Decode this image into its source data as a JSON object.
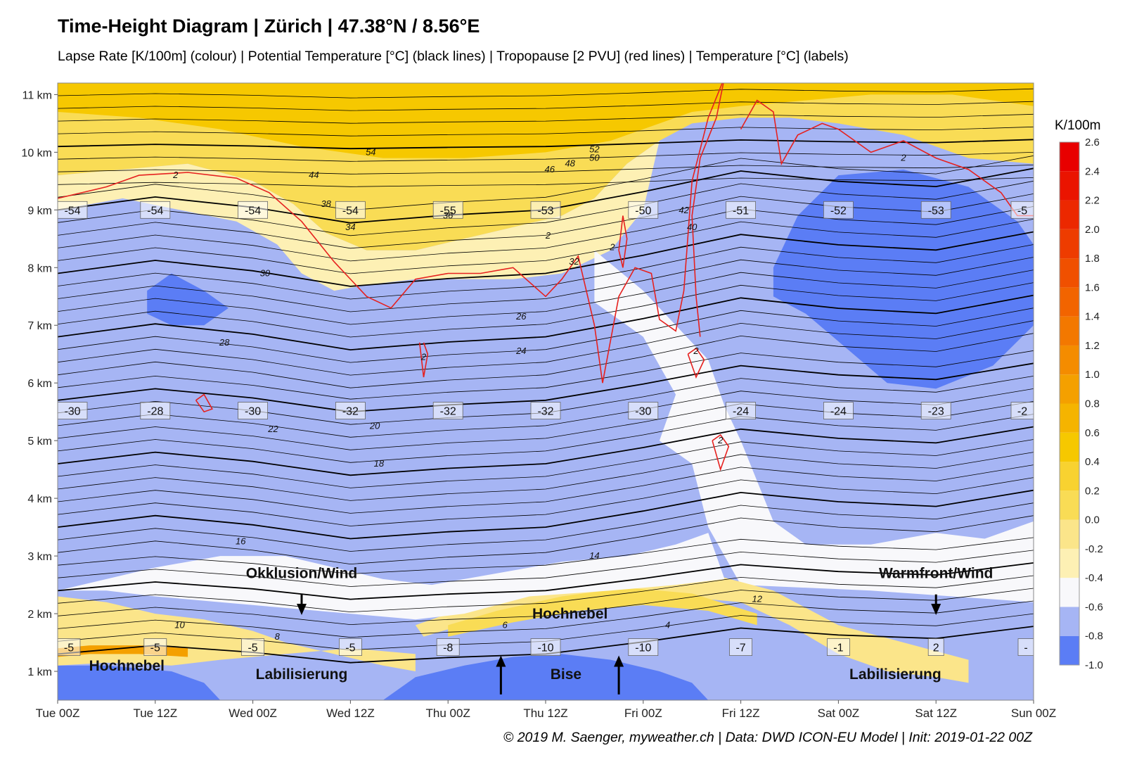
{
  "title": "Time-Height Diagram | Zürich | 47.38°N / 8.56°E",
  "subtitle": "Lapse Rate [K/100m] (colour) | Potential Temperature [°C] (black lines) | Tropopause [2 PVU] (red lines) | Temperature [°C] (labels)",
  "footer": "© 2019 M. Saenger, myweather.ch | Data: DWD ICON-EU Model | Init: 2019-01-22 00Z",
  "chart_data": {
    "type": "heatmap",
    "x_labels": [
      "Tue 00Z",
      "Tue 12Z",
      "Wed 00Z",
      "Wed 12Z",
      "Thu 00Z",
      "Thu 12Z",
      "Fri 00Z",
      "Fri 12Z",
      "Sat 00Z",
      "Sat 12Z",
      "Sun 00Z"
    ],
    "x_hours": [
      0,
      12,
      24,
      36,
      48,
      60,
      72,
      84,
      96,
      108,
      120
    ],
    "y_labels": [
      "1 km",
      "2 km",
      "3 km",
      "4 km",
      "5 km",
      "6 km",
      "7 km",
      "8 km",
      "9 km",
      "10 km",
      "11 km"
    ],
    "y_km": [
      1,
      2,
      3,
      4,
      5,
      6,
      7,
      8,
      9,
      10,
      11
    ],
    "ylim": [
      0.5,
      11.2
    ],
    "xlim": [
      0,
      120
    ],
    "colorbar": {
      "label": "K/100m",
      "levels": [
        -1.0,
        -0.8,
        -0.6,
        -0.4,
        -0.2,
        0.0,
        0.2,
        0.4,
        0.6,
        0.8,
        1.0,
        1.2,
        1.4,
        1.6,
        1.8,
        2.0,
        2.2,
        2.4,
        2.6
      ],
      "tick_labels": [
        "-1.0",
        "-0.8",
        "-0.6",
        "-0.4",
        "-0.2",
        "0.0",
        "0.2",
        "0.4",
        "0.6",
        "0.8",
        "1.0",
        "1.2",
        "1.4",
        "1.6",
        "1.8",
        "2.0",
        "2.2",
        "2.4",
        "2.6"
      ],
      "colors": [
        "#5b7df5",
        "#a6b5f4",
        "#f8f8fb",
        "#fdf0b4",
        "#fbe58a",
        "#f9dc55",
        "#f8d230",
        "#f6c800",
        "#f5b400",
        "#f4a000",
        "#f48c00",
        "#f37800",
        "#f26400",
        "#f05000",
        "#ee3c00",
        "#ec2800",
        "#ea1400",
        "#e80000"
      ]
    },
    "temperature_labels": [
      {
        "x": 0,
        "y": 9,
        "label": "-54"
      },
      {
        "x": 12,
        "y": 9,
        "label": "-54"
      },
      {
        "x": 24,
        "y": 9,
        "label": "-54"
      },
      {
        "x": 36,
        "y": 9,
        "label": "-54"
      },
      {
        "x": 48,
        "y": 9,
        "label": "-55"
      },
      {
        "x": 60,
        "y": 9,
        "label": "-53"
      },
      {
        "x": 72,
        "y": 9,
        "label": "-50"
      },
      {
        "x": 84,
        "y": 9,
        "label": "-51"
      },
      {
        "x": 96,
        "y": 9,
        "label": "-52"
      },
      {
        "x": 108,
        "y": 9,
        "label": "-53"
      },
      {
        "x": 120,
        "y": 9,
        "label": "-5"
      },
      {
        "x": 0,
        "y": 5.52,
        "label": "-30"
      },
      {
        "x": 12,
        "y": 5.52,
        "label": "-28"
      },
      {
        "x": 24,
        "y": 5.52,
        "label": "-30"
      },
      {
        "x": 36,
        "y": 5.52,
        "label": "-32"
      },
      {
        "x": 48,
        "y": 5.52,
        "label": "-32"
      },
      {
        "x": 60,
        "y": 5.52,
        "label": "-32"
      },
      {
        "x": 72,
        "y": 5.52,
        "label": "-30"
      },
      {
        "x": 84,
        "y": 5.52,
        "label": "-24"
      },
      {
        "x": 96,
        "y": 5.52,
        "label": "-24"
      },
      {
        "x": 108,
        "y": 5.52,
        "label": "-23"
      },
      {
        "x": 120,
        "y": 5.52,
        "label": "-2"
      },
      {
        "x": 0,
        "y": 1.42,
        "label": "-5"
      },
      {
        "x": 12,
        "y": 1.42,
        "label": "-5"
      },
      {
        "x": 24,
        "y": 1.42,
        "label": "-5"
      },
      {
        "x": 36,
        "y": 1.42,
        "label": "-5"
      },
      {
        "x": 48,
        "y": 1.42,
        "label": "-8"
      },
      {
        "x": 60,
        "y": 1.42,
        "label": "-10"
      },
      {
        "x": 72,
        "y": 1.42,
        "label": "-10"
      },
      {
        "x": 84,
        "y": 1.42,
        "label": "-7"
      },
      {
        "x": 96,
        "y": 1.42,
        "label": "-1"
      },
      {
        "x": 108,
        "y": 1.42,
        "label": "2"
      },
      {
        "x": 120,
        "y": 1.42,
        "label": "-"
      }
    ],
    "potential_temperature_labels": [
      {
        "x": 38.5,
        "y": 10.0,
        "label": "54"
      },
      {
        "x": 31.5,
        "y": 9.6,
        "label": "44"
      },
      {
        "x": 33,
        "y": 9.1,
        "label": "38"
      },
      {
        "x": 36,
        "y": 8.7,
        "label": "34"
      },
      {
        "x": 48,
        "y": 8.9,
        "label": "36"
      },
      {
        "x": 60.5,
        "y": 9.7,
        "label": "46"
      },
      {
        "x": 63,
        "y": 9.8,
        "label": "48"
      },
      {
        "x": 66,
        "y": 10.05,
        "label": "52"
      },
      {
        "x": 66,
        "y": 9.9,
        "label": "50"
      },
      {
        "x": 25.5,
        "y": 7.9,
        "label": "30"
      },
      {
        "x": 63.5,
        "y": 8.1,
        "label": "32"
      },
      {
        "x": 57,
        "y": 7.15,
        "label": "26"
      },
      {
        "x": 57,
        "y": 6.55,
        "label": "24"
      },
      {
        "x": 20.5,
        "y": 6.7,
        "label": "28"
      },
      {
        "x": 26.5,
        "y": 5.2,
        "label": "22"
      },
      {
        "x": 39,
        "y": 5.25,
        "label": "20"
      },
      {
        "x": 39.5,
        "y": 4.6,
        "label": "18"
      },
      {
        "x": 22.5,
        "y": 3.25,
        "label": "16"
      },
      {
        "x": 66,
        "y": 3.0,
        "label": "14"
      },
      {
        "x": 86,
        "y": 2.25,
        "label": "12"
      },
      {
        "x": 15,
        "y": 1.8,
        "label": "10"
      },
      {
        "x": 27,
        "y": 1.6,
        "label": "8"
      },
      {
        "x": 55,
        "y": 1.8,
        "label": "6"
      },
      {
        "x": 75,
        "y": 1.8,
        "label": "4"
      },
      {
        "x": 77,
        "y": 8.99,
        "label": "42"
      },
      {
        "x": 78,
        "y": 8.7,
        "label": "40"
      }
    ],
    "tropopause_labels": [
      {
        "x": 14.5,
        "y": 9.6,
        "label": "2"
      },
      {
        "x": 60.3,
        "y": 8.55,
        "label": "2"
      },
      {
        "x": 68.2,
        "y": 8.35,
        "label": "2"
      },
      {
        "x": 45,
        "y": 6.45,
        "label": "2"
      },
      {
        "x": 78.5,
        "y": 6.55,
        "label": "2"
      },
      {
        "x": 81.5,
        "y": 5.0,
        "label": "2"
      },
      {
        "x": 104,
        "y": 9.9,
        "label": "2"
      }
    ],
    "annotations": [
      {
        "label": "Okklusion/Wind",
        "x": 30,
        "y": 2.7,
        "arrow_dir": "down"
      },
      {
        "label": "Warmfront/Wind",
        "x": 108,
        "y": 2.7,
        "arrow_dir": "down"
      },
      {
        "label": "Hochnebel",
        "x": 63,
        "y": 2.0
      },
      {
        "label": "Hochnebel",
        "x": 8.5,
        "y": 1.1
      },
      {
        "label": "Labilisierung",
        "x": 30,
        "y": 0.95
      },
      {
        "label": "Labilisierung",
        "x": 103,
        "y": 0.95
      },
      {
        "label": "Bise",
        "x": 62.5,
        "y": 0.95,
        "arrows": [
          54.5,
          69
        ]
      }
    ]
  }
}
